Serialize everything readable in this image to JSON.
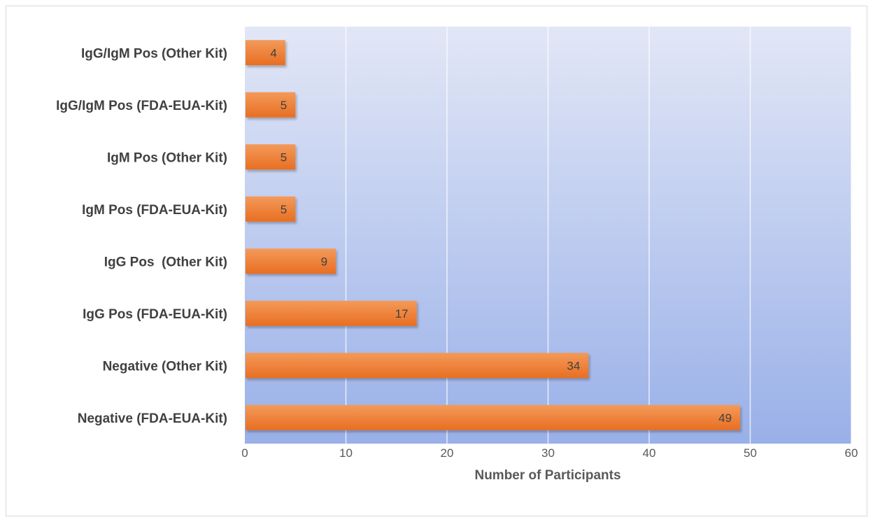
{
  "chart_data": {
    "type": "bar",
    "orientation": "horizontal",
    "title": "",
    "xlabel": "Number of Participants",
    "ylabel": "",
    "xlim": [
      0,
      60
    ],
    "xticks": [
      0,
      10,
      20,
      30,
      40,
      50,
      60
    ],
    "grid": "vertical",
    "legend": "none",
    "categories": [
      "IgG/IgM Pos (Other Kit)",
      "IgG/IgM Pos (FDA-EUA-Kit)",
      "IgM Pos (Other Kit)",
      "IgM Pos (FDA-EUA-Kit)",
      "IgG Pos  (Other Kit)",
      "IgG Pos (FDA-EUA-Kit)",
      "Negative (Other Kit)",
      "Negative (FDA-EUA-Kit)"
    ],
    "values": [
      4,
      5,
      5,
      5,
      9,
      17,
      34,
      49
    ],
    "colors": {
      "bar": "#ED7D31",
      "plot_bg_top": "#E2E7F6",
      "plot_bg_bottom": "#99B0E8"
    }
  }
}
